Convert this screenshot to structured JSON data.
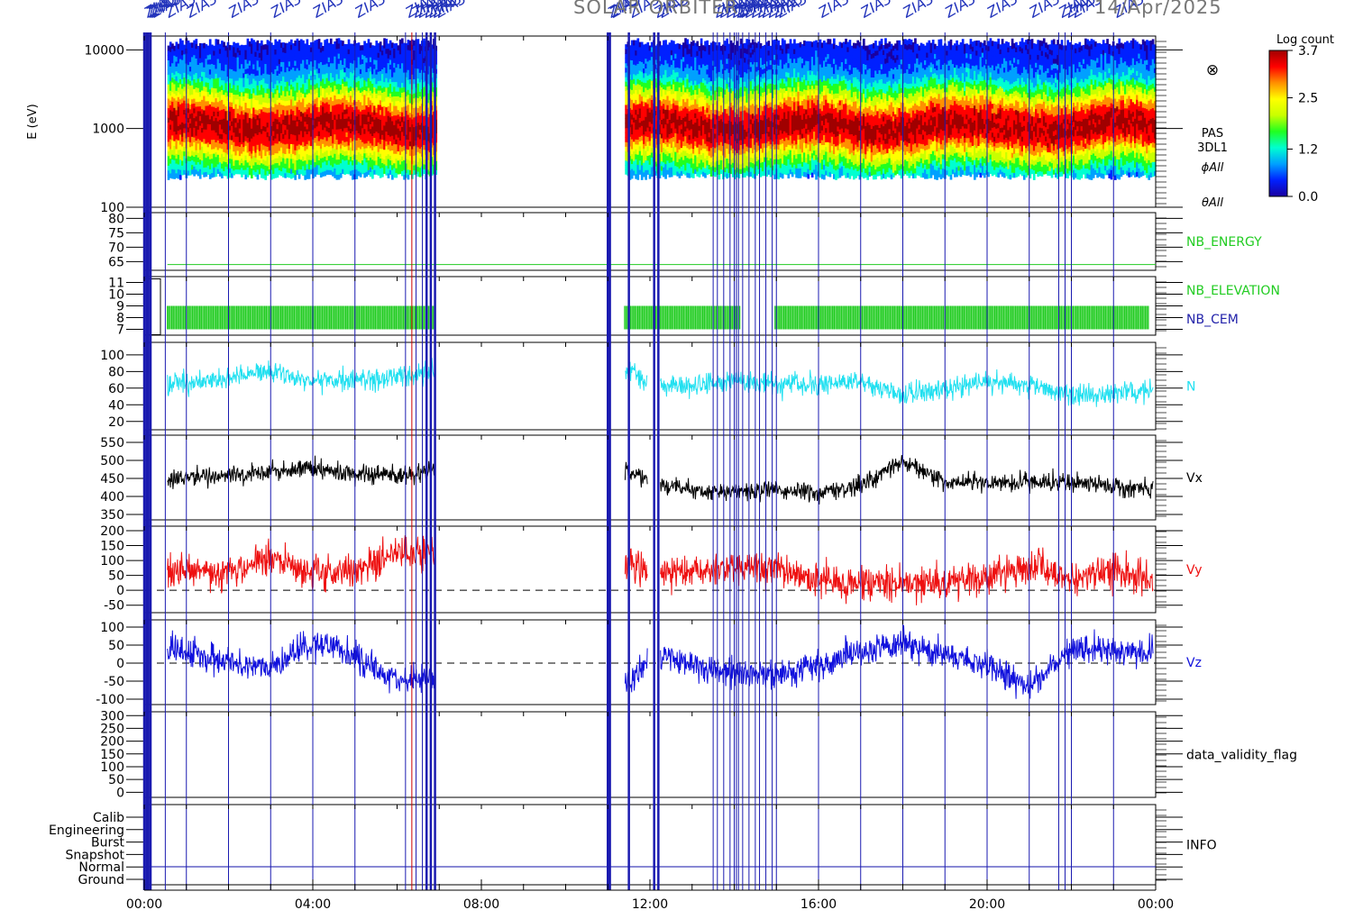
{
  "title_left": "SOLAR ORBITER",
  "title_date": "14/Apr/2025",
  "event_label": "ZIA3",
  "x_axis": {
    "tick_labels": [
      "00:00",
      "04:00",
      "08:00",
      "12:00",
      "16:00",
      "20:00",
      "00:00"
    ],
    "range_hours": [
      0,
      24
    ]
  },
  "colorbar": {
    "title": "Log count",
    "tick_labels": [
      "3.7",
      "2.5",
      "1.2",
      "0.0"
    ],
    "range": [
      0.0,
      3.7
    ],
    "colors": [
      "#1a00a0",
      "#0020ff",
      "#00a0ff",
      "#00ffd0",
      "#20ff20",
      "#c8ff00",
      "#ffff00",
      "#ff9000",
      "#ff0000",
      "#a00000"
    ]
  },
  "data_gaps_hours": [
    [
      6.9,
      11.4
    ]
  ],
  "event_lines_hours": [
    0.0,
    0.05,
    0.1,
    0.15,
    0.5,
    1.0,
    2.0,
    3.0,
    4.0,
    5.0,
    6.2,
    6.35,
    6.45,
    6.6,
    6.7,
    6.8,
    6.9,
    11.0,
    11.05,
    11.5,
    12.1,
    12.2,
    13.5,
    13.6,
    13.75,
    13.9,
    14.0,
    14.05,
    14.1,
    14.2,
    14.35,
    14.5,
    14.6,
    14.75,
    14.9,
    15.0,
    16.0,
    17.0,
    18.0,
    19.0,
    20.0,
    21.0,
    21.7,
    21.85,
    22.0,
    23.0
  ],
  "panels": [
    {
      "id": "spectrogram",
      "type": "heatmap",
      "ylabel": "E (eV)",
      "yscale": "log",
      "ylim": [
        100,
        15000
      ],
      "tick_labels": [
        "10000",
        "1000",
        "100"
      ],
      "side_labels": [
        "PAS",
        "3DL1",
        "ϕAll",
        "θAll"
      ],
      "side_symbol": "⊗"
    },
    {
      "id": "nb_energy",
      "type": "line",
      "tick_labels": [
        "80",
        "75",
        "70",
        "65"
      ],
      "ylim": [
        62,
        82
      ],
      "side_label": "NB_ENERGY",
      "color": "#22cc22",
      "value": 64
    },
    {
      "id": "nb_elevation",
      "type": "bar",
      "tick_labels": [
        "11",
        "10",
        "9",
        "8",
        "7"
      ],
      "ylim": [
        6.5,
        11.5
      ],
      "side_labels": [
        "NB_ELEVATION",
        "NB_CEM"
      ],
      "colors": [
        "#22cc22",
        "#2222aa"
      ],
      "value_range": [
        7,
        9
      ]
    },
    {
      "id": "density",
      "type": "line",
      "tick_labels": [
        "100",
        "80",
        "60",
        "40",
        "20"
      ],
      "ylim": [
        10,
        115
      ],
      "side_label": "N",
      "color": "#22e0f0"
    },
    {
      "id": "vx",
      "type": "line",
      "tick_labels": [
        "550",
        "500",
        "450",
        "400",
        "350"
      ],
      "ylim": [
        335,
        570
      ],
      "side_label": "Vx",
      "color": "#000000"
    },
    {
      "id": "vy",
      "type": "line",
      "tick_labels": [
        "200",
        "150",
        "100",
        "50",
        "0",
        "-50"
      ],
      "ylim": [
        -75,
        215
      ],
      "side_label": "Vy",
      "color": "#ee1111"
    },
    {
      "id": "vz",
      "type": "line",
      "tick_labels": [
        "100",
        "50",
        "0",
        "-50",
        "-100"
      ],
      "ylim": [
        -115,
        120
      ],
      "side_label": "Vz",
      "color": "#1111dd"
    },
    {
      "id": "validity",
      "type": "line",
      "tick_labels": [
        "300",
        "250",
        "200",
        "150",
        "100",
        "50",
        "0"
      ],
      "ylim": [
        -20,
        315
      ],
      "side_label": "data_validity_flag",
      "color": "#000000"
    },
    {
      "id": "info",
      "type": "categorical",
      "tick_labels": [
        "Calib",
        "Engineering",
        "Burst",
        "Snapshot",
        "Normal",
        "Ground"
      ],
      "side_label": "INFO"
    }
  ],
  "chart_data": [
    {
      "type": "heatmap",
      "ylabel": "E (eV)",
      "yscale": "log",
      "x_range_hours": [
        0,
        24
      ],
      "ylim": [
        100,
        15000
      ],
      "description_peak_energy_eV": 1000,
      "z_range_log_count": [
        0.0,
        3.7
      ]
    },
    {
      "type": "line",
      "name": "NB_ENERGY",
      "x_hours": [
        0.5,
        24
      ],
      "values": [
        64,
        64
      ]
    },
    {
      "type": "line",
      "name": "N",
      "x_hours": [
        0.5,
        2,
        3,
        4,
        5,
        6,
        6.8,
        11.5,
        12,
        13,
        14,
        15,
        16,
        17,
        18,
        19,
        20,
        21,
        22,
        23,
        24
      ],
      "values": [
        65,
        70,
        82,
        68,
        70,
        74,
        78,
        82,
        65,
        62,
        70,
        64,
        63,
        70,
        52,
        60,
        68,
        65,
        50,
        52,
        60
      ]
    },
    {
      "type": "line",
      "name": "Vx",
      "x_hours": [
        0.5,
        2,
        3,
        4,
        5,
        6,
        6.8,
        11.5,
        12,
        13,
        14,
        15,
        16,
        17,
        18,
        19,
        20,
        21,
        22,
        23,
        24
      ],
      "values": [
        450,
        460,
        470,
        480,
        460,
        455,
        470,
        470,
        440,
        420,
        410,
        420,
        410,
        430,
        500,
        440,
        440,
        440,
        440,
        430,
        420
      ]
    },
    {
      "type": "line",
      "name": "Vy",
      "x_hours": [
        0.5,
        2,
        3,
        4,
        5,
        6,
        6.8,
        11.5,
        12,
        13,
        14,
        15,
        16,
        17,
        18,
        19,
        20,
        21,
        22,
        23,
        24
      ],
      "values": [
        70,
        60,
        110,
        60,
        60,
        130,
        120,
        90,
        60,
        60,
        80,
        70,
        40,
        20,
        20,
        30,
        40,
        90,
        40,
        60,
        30
      ]
    },
    {
      "type": "line",
      "name": "Vz",
      "x_hours": [
        0.5,
        2,
        3,
        4,
        5,
        6,
        6.8,
        11.5,
        12,
        13,
        14,
        15,
        16,
        17,
        18,
        19,
        20,
        21,
        22,
        23,
        24
      ],
      "values": [
        40,
        0,
        -10,
        60,
        20,
        -50,
        -40,
        -60,
        20,
        0,
        -30,
        -30,
        -10,
        30,
        60,
        20,
        0,
        -70,
        40,
        30,
        20
      ]
    }
  ]
}
